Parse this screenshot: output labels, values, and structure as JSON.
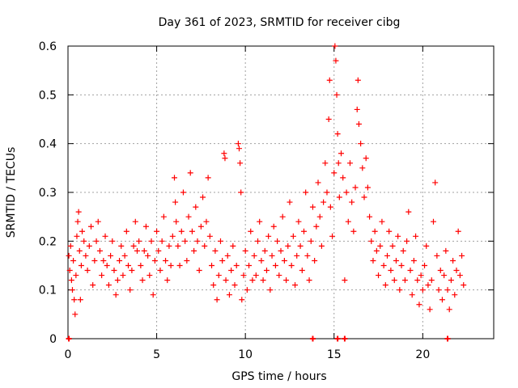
{
  "chart_data": {
    "type": "scatter",
    "title": "Day 361 of 2023, SRMTID for receiver cibg",
    "xlabel": "GPS time / hours",
    "ylabel": "SRMTID / TECUs",
    "xlim": [
      0,
      24
    ],
    "ylim": [
      0,
      0.6
    ],
    "xticks": [
      0,
      5,
      10,
      15,
      20
    ],
    "xtick_labels": [
      "0",
      "5",
      "10",
      "15",
      "20"
    ],
    "yticks": [
      0,
      0.1,
      0.2,
      0.3,
      0.4,
      0.5,
      0.6
    ],
    "ytick_labels": [
      "0",
      "0.1",
      "0.2",
      "0.3",
      "0.4",
      "0.5",
      "0.6"
    ],
    "grid": true,
    "marker": "+",
    "marker_color": "#ff0000",
    "series": [
      {
        "name": "SRMTID",
        "points": [
          [
            0.05,
            0.17
          ],
          [
            0.1,
            0.14
          ],
          [
            0.15,
            0.19
          ],
          [
            0.2,
            0.12
          ],
          [
            0.25,
            0.1
          ],
          [
            0.3,
            0.16
          ],
          [
            0.35,
            0.08
          ],
          [
            0.4,
            0.05
          ],
          [
            0.45,
            0.13
          ],
          [
            0.5,
            0.21
          ],
          [
            0.55,
            0.24
          ],
          [
            0.6,
            0.26
          ],
          [
            0.65,
            0.18
          ],
          [
            0.7,
            0.08
          ],
          [
            0.75,
            0.15
          ],
          [
            0.8,
            0.22
          ],
          [
            0.9,
            0.2
          ],
          [
            1.0,
            0.17
          ],
          [
            1.1,
            0.14
          ],
          [
            1.2,
            0.19
          ],
          [
            1.3,
            0.23
          ],
          [
            1.4,
            0.11
          ],
          [
            1.5,
            0.16
          ],
          [
            1.6,
            0.2
          ],
          [
            1.7,
            0.24
          ],
          [
            1.8,
            0.18
          ],
          [
            1.9,
            0.13
          ],
          [
            2.0,
            0.16
          ],
          [
            2.1,
            0.21
          ],
          [
            2.2,
            0.15
          ],
          [
            2.3,
            0.11
          ],
          [
            2.4,
            0.17
          ],
          [
            2.5,
            0.2
          ],
          [
            2.6,
            0.14
          ],
          [
            2.7,
            0.09
          ],
          [
            2.8,
            0.12
          ],
          [
            2.9,
            0.16
          ],
          [
            3.0,
            0.19
          ],
          [
            3.1,
            0.13
          ],
          [
            3.2,
            0.17
          ],
          [
            3.3,
            0.22
          ],
          [
            3.4,
            0.15
          ],
          [
            3.5,
            0.1
          ],
          [
            3.6,
            0.14
          ],
          [
            3.7,
            0.19
          ],
          [
            3.8,
            0.24
          ],
          [
            3.9,
            0.18
          ],
          [
            4.0,
            0.2
          ],
          [
            4.1,
            0.15
          ],
          [
            4.2,
            0.12
          ],
          [
            4.3,
            0.18
          ],
          [
            4.4,
            0.23
          ],
          [
            4.5,
            0.17
          ],
          [
            4.6,
            0.13
          ],
          [
            4.7,
            0.2
          ],
          [
            4.8,
            0.09
          ],
          [
            4.9,
            0.16
          ],
          [
            5.0,
            0.22
          ],
          [
            5.1,
            0.18
          ],
          [
            5.2,
            0.14
          ],
          [
            5.3,
            0.2
          ],
          [
            5.4,
            0.25
          ],
          [
            5.5,
            0.16
          ],
          [
            5.6,
            0.12
          ],
          [
            5.7,
            0.19
          ],
          [
            5.8,
            0.15
          ],
          [
            5.9,
            0.21
          ],
          [
            6.0,
            0.33
          ],
          [
            6.05,
            0.28
          ],
          [
            6.1,
            0.24
          ],
          [
            6.2,
            0.19
          ],
          [
            6.3,
            0.15
          ],
          [
            6.4,
            0.22
          ],
          [
            6.5,
            0.3
          ],
          [
            6.6,
            0.2
          ],
          [
            6.7,
            0.16
          ],
          [
            6.8,
            0.25
          ],
          [
            6.9,
            0.34
          ],
          [
            7.0,
            0.22
          ],
          [
            7.1,
            0.18
          ],
          [
            7.2,
            0.27
          ],
          [
            7.3,
            0.2
          ],
          [
            7.4,
            0.14
          ],
          [
            7.5,
            0.23
          ],
          [
            7.6,
            0.29
          ],
          [
            7.7,
            0.19
          ],
          [
            7.8,
            0.24
          ],
          [
            7.9,
            0.33
          ],
          [
            8.0,
            0.21
          ],
          [
            8.1,
            0.15
          ],
          [
            8.2,
            0.11
          ],
          [
            8.3,
            0.18
          ],
          [
            8.4,
            0.08
          ],
          [
            8.5,
            0.13
          ],
          [
            8.6,
            0.2
          ],
          [
            8.7,
            0.16
          ],
          [
            8.8,
            0.38
          ],
          [
            8.85,
            0.37
          ],
          [
            8.9,
            0.12
          ],
          [
            9.0,
            0.17
          ],
          [
            9.1,
            0.09
          ],
          [
            9.2,
            0.14
          ],
          [
            9.3,
            0.19
          ],
          [
            9.4,
            0.11
          ],
          [
            9.5,
            0.15
          ],
          [
            9.6,
            0.4
          ],
          [
            9.65,
            0.39
          ],
          [
            9.7,
            0.36
          ],
          [
            9.75,
            0.3
          ],
          [
            9.8,
            0.08
          ],
          [
            9.9,
            0.13
          ],
          [
            10.0,
            0.18
          ],
          [
            10.1,
            0.1
          ],
          [
            10.2,
            0.15
          ],
          [
            10.3,
            0.22
          ],
          [
            10.4,
            0.12
          ],
          [
            10.5,
            0.17
          ],
          [
            10.6,
            0.13
          ],
          [
            10.7,
            0.2
          ],
          [
            10.8,
            0.24
          ],
          [
            10.9,
            0.16
          ],
          [
            11.0,
            0.12
          ],
          [
            11.1,
            0.18
          ],
          [
            11.2,
            0.14
          ],
          [
            11.3,
            0.21
          ],
          [
            11.4,
            0.1
          ],
          [
            11.5,
            0.17
          ],
          [
            11.6,
            0.23
          ],
          [
            11.7,
            0.15
          ],
          [
            11.8,
            0.2
          ],
          [
            11.9,
            0.13
          ],
          [
            12.0,
            0.18
          ],
          [
            12.1,
            0.25
          ],
          [
            12.2,
            0.16
          ],
          [
            12.3,
            0.12
          ],
          [
            12.4,
            0.19
          ],
          [
            12.5,
            0.28
          ],
          [
            12.6,
            0.15
          ],
          [
            12.7,
            0.21
          ],
          [
            12.8,
            0.11
          ],
          [
            12.9,
            0.17
          ],
          [
            13.0,
            0.24
          ],
          [
            13.1,
            0.19
          ],
          [
            13.2,
            0.14
          ],
          [
            13.3,
            0.22
          ],
          [
            13.4,
            0.3
          ],
          [
            13.5,
            0.17
          ],
          [
            13.6,
            0.12
          ],
          [
            13.7,
            0.2
          ],
          [
            13.8,
            0.27
          ],
          [
            13.9,
            0.16
          ],
          [
            14.0,
            0.23
          ],
          [
            14.1,
            0.32
          ],
          [
            14.2,
            0.25
          ],
          [
            14.3,
            0.19
          ],
          [
            14.4,
            0.28
          ],
          [
            14.5,
            0.36
          ],
          [
            14.6,
            0.3
          ],
          [
            14.7,
            0.45
          ],
          [
            14.75,
            0.53
          ],
          [
            14.8,
            0.27
          ],
          [
            14.9,
            0.21
          ],
          [
            15.0,
            0.34
          ],
          [
            15.05,
            0.6
          ],
          [
            15.1,
            0.57
          ],
          [
            15.15,
            0.5
          ],
          [
            15.2,
            0.42
          ],
          [
            15.25,
            0.36
          ],
          [
            15.3,
            0.29
          ],
          [
            15.4,
            0.38
          ],
          [
            15.5,
            0.33
          ],
          [
            15.6,
            0.12
          ],
          [
            15.7,
            0.3
          ],
          [
            15.8,
            0.24
          ],
          [
            15.9,
            0.36
          ],
          [
            16.0,
            0.28
          ],
          [
            16.1,
            0.22
          ],
          [
            16.2,
            0.31
          ],
          [
            16.3,
            0.47
          ],
          [
            16.35,
            0.53
          ],
          [
            16.4,
            0.44
          ],
          [
            16.5,
            0.4
          ],
          [
            16.6,
            0.35
          ],
          [
            16.7,
            0.29
          ],
          [
            16.8,
            0.37
          ],
          [
            16.9,
            0.31
          ],
          [
            17.0,
            0.25
          ],
          [
            17.1,
            0.2
          ],
          [
            17.2,
            0.16
          ],
          [
            17.3,
            0.22
          ],
          [
            17.4,
            0.18
          ],
          [
            17.5,
            0.13
          ],
          [
            17.6,
            0.19
          ],
          [
            17.7,
            0.24
          ],
          [
            17.8,
            0.15
          ],
          [
            17.9,
            0.11
          ],
          [
            18.0,
            0.17
          ],
          [
            18.1,
            0.22
          ],
          [
            18.2,
            0.14
          ],
          [
            18.3,
            0.19
          ],
          [
            18.4,
            0.12
          ],
          [
            18.5,
            0.16
          ],
          [
            18.6,
            0.21
          ],
          [
            18.7,
            0.1
          ],
          [
            18.8,
            0.15
          ],
          [
            18.9,
            0.18
          ],
          [
            19.0,
            0.12
          ],
          [
            19.1,
            0.2
          ],
          [
            19.2,
            0.26
          ],
          [
            19.3,
            0.14
          ],
          [
            19.4,
            0.09
          ],
          [
            19.5,
            0.16
          ],
          [
            19.6,
            0.21
          ],
          [
            19.7,
            0.12
          ],
          [
            19.8,
            0.07
          ],
          [
            19.9,
            0.13
          ],
          [
            20.0,
            0.1
          ],
          [
            20.1,
            0.15
          ],
          [
            20.2,
            0.19
          ],
          [
            20.3,
            0.11
          ],
          [
            20.4,
            0.06
          ],
          [
            20.5,
            0.12
          ],
          [
            20.6,
            0.24
          ],
          [
            20.7,
            0.32
          ],
          [
            20.8,
            0.17
          ],
          [
            20.9,
            0.1
          ],
          [
            21.0,
            0.14
          ],
          [
            21.1,
            0.08
          ],
          [
            21.2,
            0.13
          ],
          [
            21.3,
            0.18
          ],
          [
            21.4,
            0.1
          ],
          [
            21.5,
            0.06
          ],
          [
            21.6,
            0.12
          ],
          [
            21.7,
            0.16
          ],
          [
            21.8,
            0.09
          ],
          [
            21.9,
            0.14
          ],
          [
            22.0,
            0.22
          ],
          [
            22.1,
            0.13
          ],
          [
            22.2,
            0.17
          ],
          [
            22.3,
            0.11
          ]
        ]
      }
    ],
    "zero_points_x": [
      0.05,
      13.8,
      15.2,
      15.6,
      21.4
    ]
  }
}
